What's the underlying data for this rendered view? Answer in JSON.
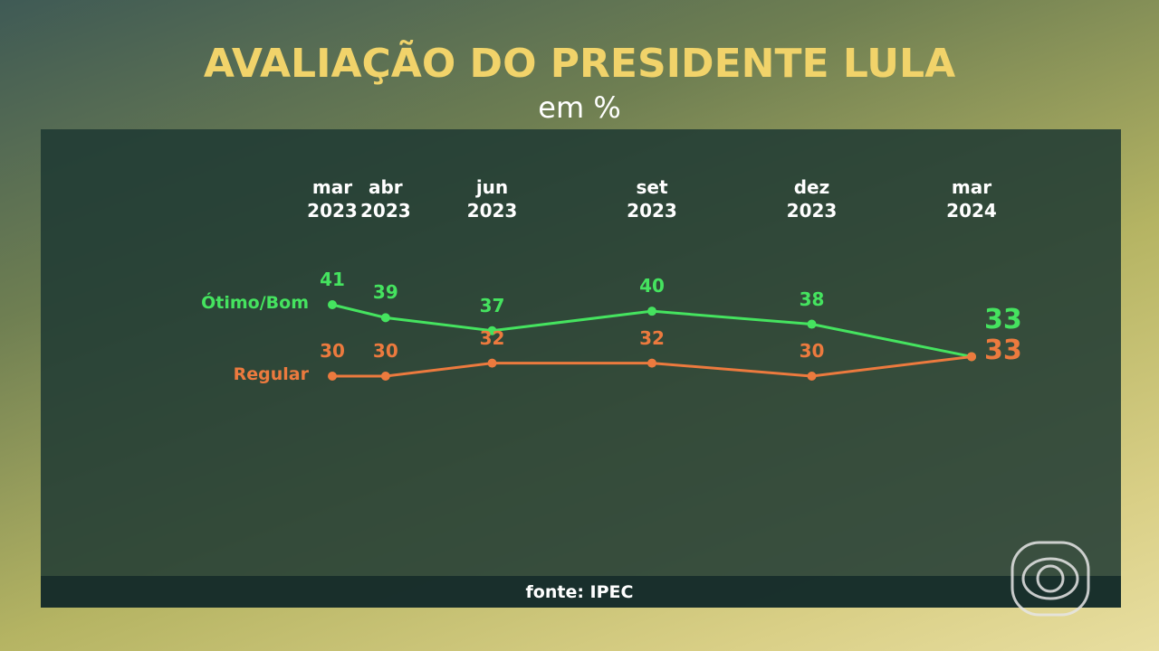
{
  "chart_data": {
    "type": "line",
    "title": "AVALIAÇÃO DO PRESIDENTE LULA",
    "subtitle": "em %",
    "source": "fonte: IPEC",
    "x": [
      "2023-03",
      "2023-04",
      "2023-06",
      "2023-09",
      "2023-12",
      "2024-03"
    ],
    "xticks": [
      {
        "value": "2023-03",
        "label": "mar 2023"
      },
      {
        "value": "2023-04",
        "label": "abr 2023"
      },
      {
        "value": "2023-06",
        "label": "jun 2023"
      },
      {
        "value": "2023-09",
        "label": "set 2023"
      },
      {
        "value": "2023-12",
        "label": "dez 2023"
      },
      {
        "value": "2024-03",
        "label": "mar 2024"
      }
    ],
    "series": [
      {
        "name": "Ótimo/Bom",
        "color": "#45e35f",
        "values": [
          41,
          39,
          37,
          40,
          38,
          33
        ]
      },
      {
        "name": "Regular",
        "color": "#ec7a3e",
        "values": [
          30,
          30,
          32,
          32,
          30,
          33
        ]
      }
    ]
  }
}
